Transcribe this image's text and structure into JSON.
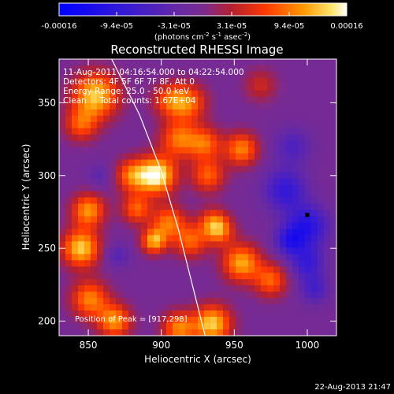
{
  "chart_data": {
    "type": "heatmap",
    "title": "Reconstructed RHESSI Image",
    "xlabel": "Heliocentric X (arcsec)",
    "ylabel": "Heliocentric Y (arcsec)",
    "xlim": [
      830,
      1020
    ],
    "ylim": [
      190,
      380
    ],
    "x_ticks": [
      850,
      900,
      950,
      1000
    ],
    "y_ticks": [
      200,
      250,
      300,
      350
    ],
    "grid": false,
    "colorbar": {
      "placement": "top",
      "ticks": [
        "-0.00016",
        "-9.4e-05",
        "-3.1e-05",
        "3.1e-05",
        "9.4e-05",
        "0.00016"
      ],
      "unit_label": "(photons cm",
      "unit_sup1": "-2",
      "unit_mid": " s",
      "unit_sup2": "-1",
      "unit_end": " asec",
      "unit_sup3": "-2",
      "unit_close": ")",
      "range": [
        -0.00016,
        0.00016
      ]
    },
    "annotations": [
      "11-Aug-2011 04:16:54.000 to 04:22:54.000",
      "Detectors: 4F 5F 6F 7F 8F, Att 0",
      "Energy Range: 25.0 - 50.0 keV",
      "Clean     Total counts: 1.67E+04"
    ],
    "peak_label": "Position of Peak = [917,298]",
    "peak": [
      917,
      298
    ],
    "min_marker": [
      1000,
      273
    ],
    "limb_points": [
      [
        866,
        380
      ],
      [
        885,
        342
      ],
      [
        900,
        303
      ],
      [
        912,
        262
      ],
      [
        922,
        222
      ],
      [
        930,
        190
      ]
    ],
    "sources": [
      {
        "x": 897,
        "y": 300,
        "amp": 1.0,
        "s": 9
      },
      {
        "x": 912,
        "y": 325,
        "amp": 0.6,
        "s": 9
      },
      {
        "x": 930,
        "y": 322,
        "amp": 0.55,
        "s": 8
      },
      {
        "x": 880,
        "y": 300,
        "amp": 0.6,
        "s": 8
      },
      {
        "x": 883,
        "y": 277,
        "amp": 0.55,
        "s": 7
      },
      {
        "x": 905,
        "y": 268,
        "amp": 0.6,
        "s": 8
      },
      {
        "x": 918,
        "y": 350,
        "amp": 0.6,
        "s": 9
      },
      {
        "x": 905,
        "y": 352,
        "amp": 0.45,
        "s": 8
      },
      {
        "x": 855,
        "y": 355,
        "amp": 0.85,
        "s": 11
      },
      {
        "x": 845,
        "y": 335,
        "amp": 0.5,
        "s": 8
      },
      {
        "x": 932,
        "y": 300,
        "amp": 0.55,
        "s": 8
      },
      {
        "x": 850,
        "y": 276,
        "amp": 0.7,
        "s": 8
      },
      {
        "x": 845,
        "y": 250,
        "amp": 0.85,
        "s": 9
      },
      {
        "x": 851,
        "y": 215,
        "amp": 0.65,
        "s": 9
      },
      {
        "x": 868,
        "y": 200,
        "amp": 0.7,
        "s": 8
      },
      {
        "x": 895,
        "y": 255,
        "amp": 0.75,
        "s": 6
      },
      {
        "x": 920,
        "y": 255,
        "amp": 0.55,
        "s": 8
      },
      {
        "x": 955,
        "y": 318,
        "amp": 0.65,
        "s": 8
      },
      {
        "x": 935,
        "y": 268,
        "amp": 0.45,
        "s": 7
      },
      {
        "x": 940,
        "y": 262,
        "amp": 0.55,
        "s": 7
      },
      {
        "x": 955,
        "y": 240,
        "amp": 0.75,
        "s": 9
      },
      {
        "x": 975,
        "y": 228,
        "amp": 0.55,
        "s": 8
      },
      {
        "x": 935,
        "y": 198,
        "amp": 0.85,
        "s": 9
      },
      {
        "x": 912,
        "y": 195,
        "amp": 0.65,
        "s": 8
      },
      {
        "x": 968,
        "y": 362,
        "amp": 0.3,
        "s": 8
      },
      {
        "x": 985,
        "y": 290,
        "amp": -0.5,
        "s": 10
      },
      {
        "x": 1000,
        "y": 265,
        "amp": -0.6,
        "s": 10
      },
      {
        "x": 988,
        "y": 255,
        "amp": -0.5,
        "s": 7
      },
      {
        "x": 1000,
        "y": 240,
        "amp": -0.45,
        "s": 8
      },
      {
        "x": 1005,
        "y": 222,
        "amp": -0.35,
        "s": 7
      },
      {
        "x": 990,
        "y": 320,
        "amp": -0.3,
        "s": 9
      },
      {
        "x": 870,
        "y": 245,
        "amp": -0.25,
        "s": 6
      },
      {
        "x": 858,
        "y": 300,
        "amp": -0.2,
        "s": 6
      }
    ]
  },
  "timestamp": "22-Aug-2013 21:47"
}
